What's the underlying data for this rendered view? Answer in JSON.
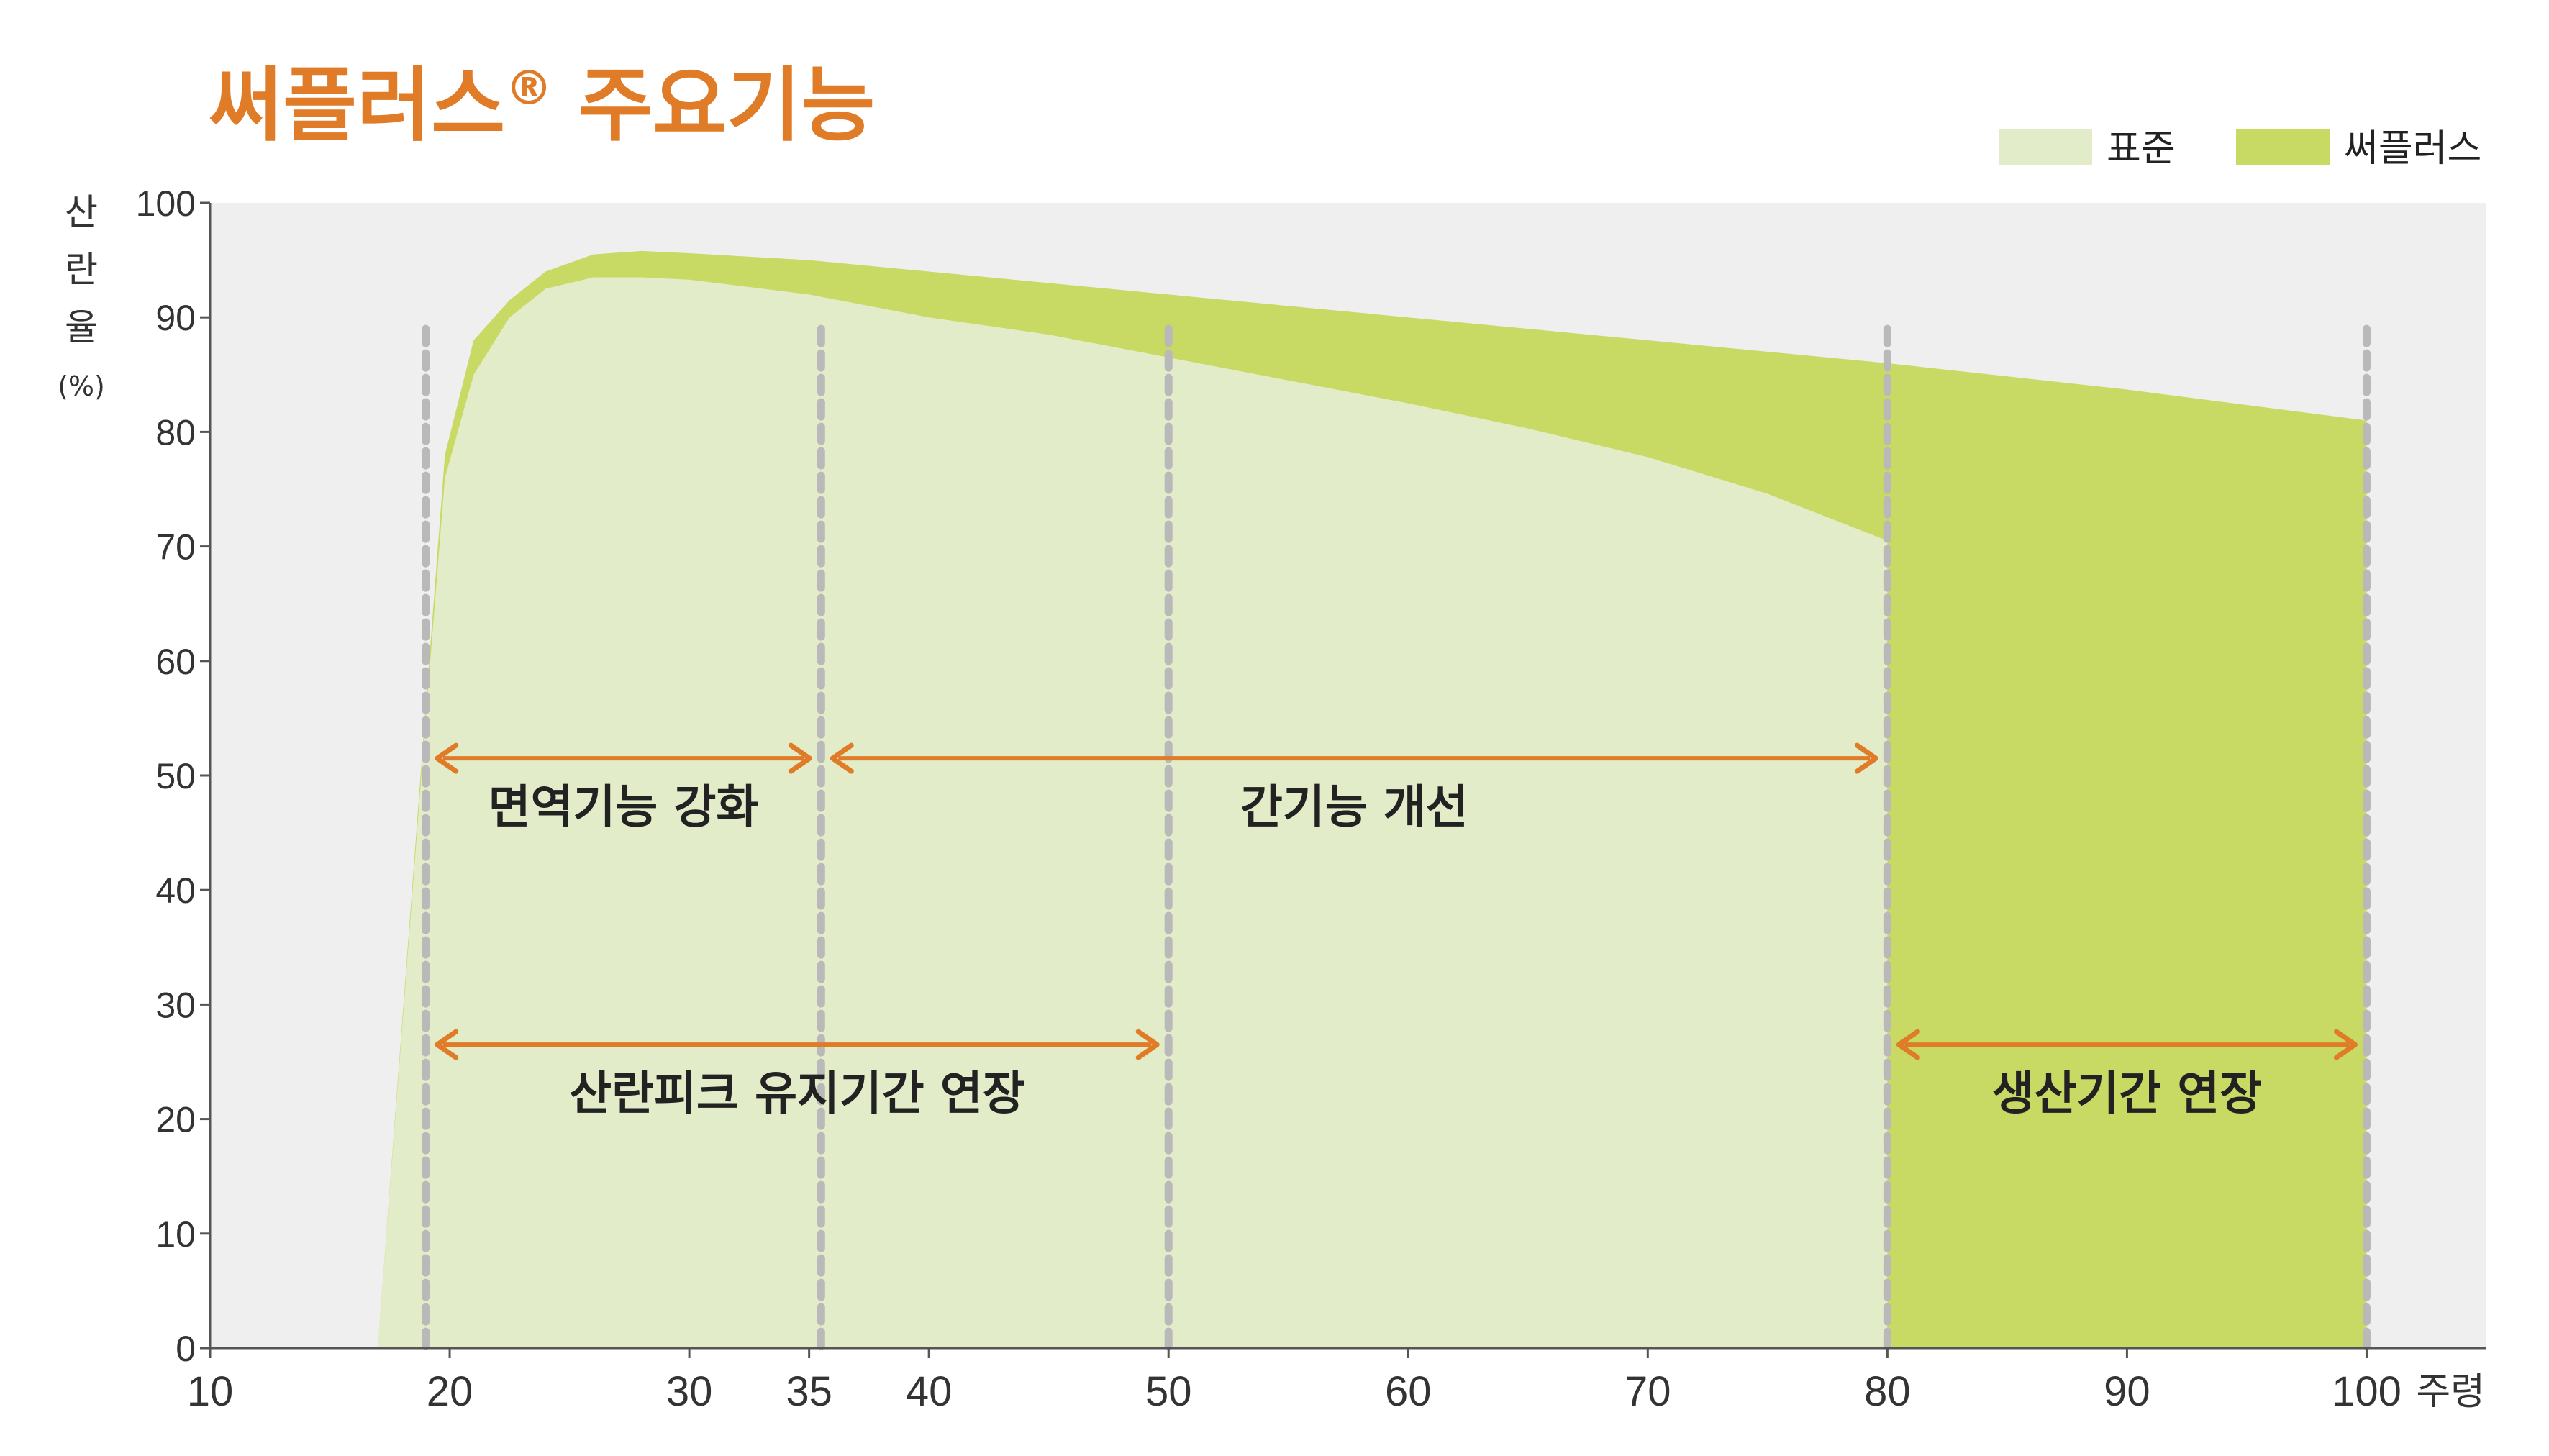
{
  "chart_data": {
    "type": "area",
    "title": "써플러스",
    "title_mark": "®",
    "title_suffix": "주요기능",
    "xlabel": "주령",
    "ylabel_chars": [
      "산",
      "란",
      "율"
    ],
    "ylabel_unit": "(%)",
    "xlim": [
      10,
      105
    ],
    "ylim": [
      0,
      100
    ],
    "x_ticks": [
      10,
      20,
      30,
      35,
      40,
      50,
      60,
      70,
      80,
      90,
      100
    ],
    "y_ticks": [
      0,
      10,
      20,
      30,
      40,
      50,
      60,
      70,
      80,
      90,
      100
    ],
    "grid": false,
    "legend_position": "top-right",
    "plot_background": "#efefef",
    "series": [
      {
        "name": "표준",
        "color": "#e3ecc8",
        "points": [
          [
            17,
            0
          ],
          [
            19,
            55
          ],
          [
            19.8,
            76
          ],
          [
            21,
            85
          ],
          [
            22.5,
            90
          ],
          [
            24,
            92.5
          ],
          [
            26,
            93.5
          ],
          [
            28,
            93.5
          ],
          [
            30,
            93.3
          ],
          [
            35,
            92
          ],
          [
            40,
            90
          ],
          [
            45,
            88.5
          ],
          [
            50,
            86.5
          ],
          [
            55,
            84.5
          ],
          [
            60,
            82.5
          ],
          [
            65,
            80.3
          ],
          [
            70,
            77.8
          ],
          [
            75,
            74.6
          ],
          [
            80,
            70.5
          ]
        ]
      },
      {
        "name": "써플러스",
        "color": "#c8d964",
        "points": [
          [
            17,
            0
          ],
          [
            19,
            56
          ],
          [
            19.8,
            78
          ],
          [
            21,
            88
          ],
          [
            22.5,
            91.5
          ],
          [
            24,
            94
          ],
          [
            26,
            95.5
          ],
          [
            28,
            95.8
          ],
          [
            30,
            95.6
          ],
          [
            35,
            95
          ],
          [
            40,
            94
          ],
          [
            50,
            92
          ],
          [
            60,
            90
          ],
          [
            70,
            88
          ],
          [
            80,
            86
          ],
          [
            90,
            83.7
          ],
          [
            100,
            81
          ]
        ]
      }
    ],
    "vlines": [
      19,
      35.5,
      50,
      80,
      100
    ],
    "annotations": [
      {
        "label": "면역기능 강화",
        "x_start": 19,
        "x_end": 35.5,
        "y": 51.5
      },
      {
        "label": "간기능 개선",
        "x_start": 35.5,
        "x_end": 80,
        "y": 51.5
      },
      {
        "label": "산란피크 유지기간 연장",
        "x_start": 19,
        "x_end": 50,
        "y": 26.5
      },
      {
        "label": "생산기간 연장",
        "x_start": 80,
        "x_end": 100,
        "y": 26.5
      }
    ],
    "annotation_color": "#e07b27",
    "vline_color": "#b9b9b9"
  }
}
